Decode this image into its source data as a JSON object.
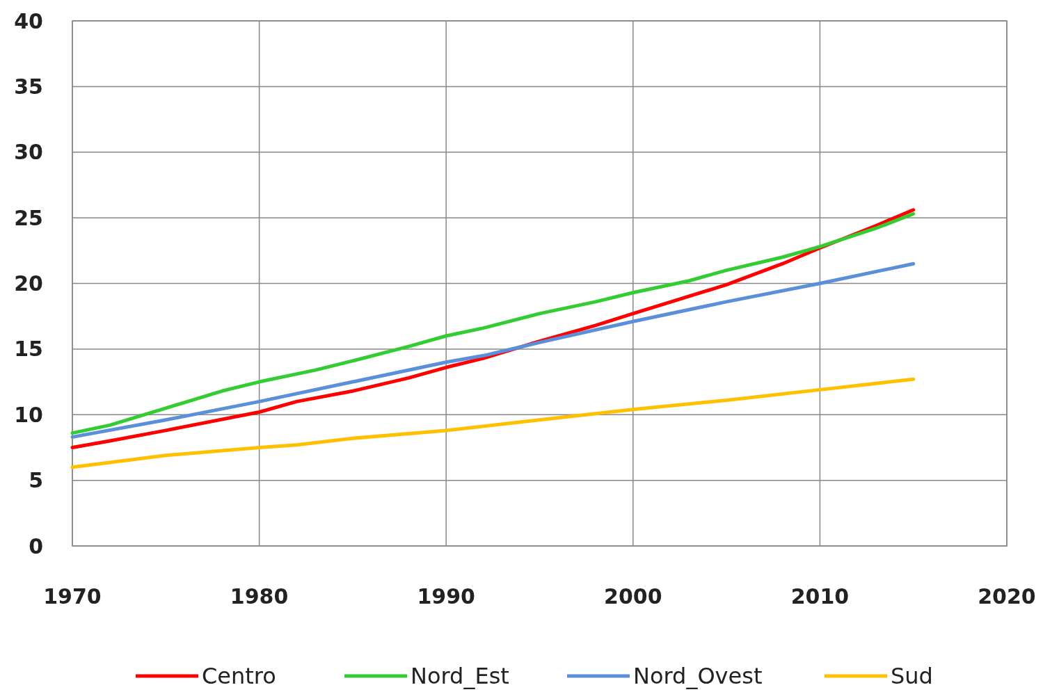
{
  "chart_data": {
    "type": "line",
    "xlim": [
      1970,
      2020
    ],
    "xticks": [
      1970,
      1980,
      1990,
      2000,
      2010,
      2020
    ],
    "ylim": [
      0,
      40
    ],
    "yticks": [
      0,
      5,
      10,
      15,
      20,
      25,
      30,
      35,
      40
    ],
    "grid": true,
    "legend": "bottom",
    "marker": "none",
    "line_style": "solid",
    "series": [
      {
        "name": "Centro",
        "color": "#ff0000",
        "x": [
          1970,
          1972,
          1975,
          1980,
          1982,
          1985,
          1988,
          1990,
          1992,
          1995,
          1998,
          2000,
          2005,
          2008,
          2010,
          2013,
          2015
        ],
        "values": [
          7.5,
          8.0,
          8.8,
          10.2,
          11.0,
          11.8,
          12.8,
          13.6,
          14.3,
          15.6,
          16.8,
          17.7,
          19.9,
          21.5,
          22.7,
          24.4,
          25.6
        ]
      },
      {
        "name": "Nord_Est",
        "color": "#33cc33",
        "x": [
          1970,
          1972,
          1975,
          1978,
          1980,
          1983,
          1985,
          1988,
          1990,
          1992,
          1995,
          1998,
          2000,
          2003,
          2005,
          2008,
          2010,
          2013,
          2015
        ],
        "values": [
          8.6,
          9.2,
          10.5,
          11.8,
          12.5,
          13.4,
          14.1,
          15.2,
          16.0,
          16.6,
          17.7,
          18.6,
          19.3,
          20.2,
          21.0,
          22.0,
          22.8,
          24.2,
          25.3
        ]
      },
      {
        "name": "Nord_Ovest",
        "color": "#5b8fd9",
        "x": [
          1970,
          1975,
          1980,
          1985,
          1990,
          1992,
          1995,
          2000,
          2005,
          2010,
          2015
        ],
        "values": [
          8.3,
          9.6,
          11.0,
          12.5,
          14.0,
          14.5,
          15.5,
          17.1,
          18.6,
          20.0,
          21.5
        ]
      },
      {
        "name": "Sud",
        "color": "#ffc000",
        "x": [
          1970,
          1975,
          1980,
          1982,
          1985,
          1990,
          1995,
          2000,
          2005,
          2010,
          2015
        ],
        "values": [
          6.0,
          6.9,
          7.5,
          7.7,
          8.2,
          8.8,
          9.6,
          10.4,
          11.1,
          11.9,
          12.7
        ]
      }
    ]
  }
}
